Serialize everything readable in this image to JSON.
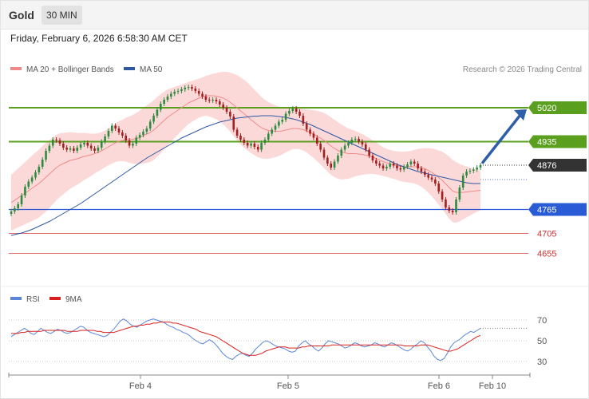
{
  "header": {
    "title": "Gold",
    "timeframe": "30 MIN"
  },
  "datetime": "Friday, February 6, 2026 6:58:30 AM CET",
  "legend": {
    "ma20": "MA 20 + Bollinger Bands",
    "ma50": "MA 50"
  },
  "copyright": "Research © 2026 Trading Central",
  "rsi_legend": {
    "rsi": "RSI",
    "ma": "9MA"
  },
  "colors": {
    "up": "#2e8b3e",
    "down": "#a31f1f",
    "ma20": "#f08a8a",
    "ma50": "#2f57a3",
    "band": "#fcd9d9",
    "resistance": "#5aa01e",
    "support": "#2a5bd7",
    "pivot": "#333333",
    "lowsupport": "#e06b6b",
    "rsi": "#5b86d8",
    "rsi_ma": "#d92020"
  },
  "chart_data": [
    {
      "type": "line",
      "name": "price",
      "ylim": [
        4600,
        5090
      ],
      "x_ticks": [
        "Feb 4",
        "Feb 5",
        "Feb 6",
        "Feb 10"
      ],
      "levels": [
        {
          "value": 5020,
          "label": "5020",
          "kind": "resistance"
        },
        {
          "value": 4935,
          "label": "4935",
          "kind": "resistance"
        },
        {
          "value": 4876,
          "label": "4876",
          "kind": "pivot"
        },
        {
          "value": 4765,
          "label": "4765",
          "kind": "support"
        },
        {
          "value": 4705,
          "label": "4705",
          "kind": "support-minor"
        },
        {
          "value": 4655,
          "label": "4655",
          "kind": "support-minor"
        }
      ],
      "close": [
        4760,
        4768,
        4778,
        4800,
        4822,
        4835,
        4845,
        4858,
        4872,
        4890,
        4912,
        4925,
        4940,
        4938,
        4930,
        4920,
        4915,
        4918,
        4912,
        4920,
        4928,
        4932,
        4925,
        4918,
        4912,
        4920,
        4935,
        4948,
        4962,
        4975,
        4968,
        4958,
        4950,
        4938,
        4925,
        4930,
        4945,
        4952,
        4960,
        4968,
        4985,
        5000,
        5015,
        5030,
        5040,
        5048,
        5055,
        5060,
        5062,
        5066,
        5070,
        5072,
        5068,
        5062,
        5055,
        5048,
        5040,
        5038,
        5040,
        5036,
        5028,
        5020,
        5010,
        4998,
        4965,
        4950,
        4940,
        4932,
        4925,
        4930,
        4922,
        4915,
        4932,
        4940,
        4955,
        4965,
        4975,
        4985,
        4990,
        5005,
        5012,
        5018,
        5010,
        5000,
        4980,
        4965,
        4955,
        4945,
        4930,
        4915,
        4895,
        4880,
        4870,
        4885,
        4900,
        4915,
        4925,
        4932,
        4940,
        4942,
        4935,
        4928,
        4915,
        4900,
        4888,
        4880,
        4875,
        4868,
        4872,
        4880,
        4875,
        4868,
        4865,
        4872,
        4878,
        4885,
        4880,
        4868,
        4860,
        4852,
        4845,
        4840,
        4830,
        4810,
        4790,
        4770,
        4762,
        4758,
        4790,
        4820,
        4850,
        4860,
        4862,
        4865,
        4870,
        4876
      ],
      "ma20": [
        4782,
        4788,
        4794,
        4800,
        4806,
        4812,
        4818,
        4824,
        4830,
        4838,
        4846,
        4854,
        4862,
        4870,
        4876,
        4880,
        4884,
        4888,
        4890,
        4892,
        4895,
        4898,
        4900,
        4902,
        4905,
        4908,
        4912,
        4917,
        4922,
        4927,
        4932,
        4936,
        4938,
        4940,
        4940,
        4941,
        4943,
        4946,
        4950,
        4954,
        4958,
        4964,
        4972,
        4980,
        4988,
        4996,
        5002,
        5008,
        5014,
        5020,
        5026,
        5032,
        5036,
        5040,
        5044,
        5047,
        5050,
        5050,
        5050,
        5049,
        5047,
        5044,
        5040,
        5034,
        5027,
        5020,
        5012,
        5005,
        4998,
        4990,
        4983,
        4976,
        4970,
        4966,
        4963,
        4962,
        4961,
        4961,
        4962,
        4964,
        4966,
        4968,
        4968,
        4967,
        4965,
        4962,
        4958,
        4954,
        4949,
        4944,
        4938,
        4931,
        4924,
        4918,
        4913,
        4909,
        4907,
        4905,
        4905,
        4905,
        4904,
        4903,
        4901,
        4899,
        4896,
        4893,
        4889,
        4885,
        4882,
        4879,
        4877,
        4875,
        4873,
        4872,
        4872,
        4872,
        4872,
        4872,
        4870,
        4867,
        4863,
        4858,
        4852,
        4845,
        4838,
        4829,
        4820,
        4811,
        4808,
        4807,
        4808,
        4809,
        4810,
        4811,
        4812,
        4813
      ],
      "ma50": [
        4700,
        4702,
        4704,
        4706,
        4709,
        4712,
        4715,
        4719,
        4723,
        4727,
        4731,
        4735,
        4740,
        4745,
        4750,
        4755,
        4760,
        4765,
        4770,
        4775,
        4780,
        4786,
        4792,
        4798,
        4804,
        4810,
        4816,
        4822,
        4828,
        4834,
        4840,
        4846,
        4852,
        4858,
        4864,
        4870,
        4876,
        4882,
        4888,
        4894,
        4899,
        4904,
        4909,
        4914,
        4919,
        4924,
        4929,
        4934,
        4939,
        4944,
        4948,
        4952,
        4956,
        4960,
        4964,
        4968,
        4972,
        4975,
        4978,
        4981,
        4984,
        4986,
        4988,
        4990,
        4992,
        4994,
        4995,
        4996,
        4997,
        4998,
        4999,
        4999,
        5000,
        5000,
        5000,
        5000,
        4999,
        4998,
        4997,
        4996,
        4994,
        4992,
        4990,
        4987,
        4984,
        4981,
        4978,
        4974,
        4970,
        4966,
        4962,
        4958,
        4954,
        4950,
        4946,
        4942,
        4938,
        4934,
        4930,
        4926,
        4922,
        4918,
        4914,
        4910,
        4906,
        4902,
        4898,
        4894,
        4890,
        4886,
        4882,
        4878,
        4875,
        4872,
        4869,
        4866,
        4863,
        4860,
        4858,
        4856,
        4854,
        4852,
        4850,
        4848,
        4846,
        4844,
        4842,
        4840,
        4838,
        4836,
        4834,
        4832,
        4831,
        4830,
        4830,
        4830
      ],
      "band_width": [
        70,
        72,
        74,
        76,
        78,
        80,
        82,
        84,
        85,
        86,
        86,
        85,
        84,
        82,
        80,
        77,
        74,
        71,
        68,
        65,
        62,
        59,
        56,
        53,
        50,
        48,
        47,
        46,
        46,
        47,
        48,
        50,
        52,
        55,
        58,
        61,
        64,
        67,
        70,
        72,
        74,
        75,
        75,
        74,
        72,
        70,
        67,
        64,
        61,
        58,
        55,
        53,
        51,
        50,
        49,
        49,
        50,
        52,
        55,
        58,
        62,
        66,
        70,
        74,
        78,
        82,
        84,
        85,
        85,
        84,
        82,
        80,
        77,
        74,
        71,
        68,
        65,
        62,
        59,
        56,
        54,
        52,
        51,
        51,
        52,
        54,
        57,
        60,
        63,
        66,
        69,
        71,
        72,
        72,
        71,
        69,
        66,
        63,
        60,
        57,
        54,
        51,
        48,
        45,
        42,
        40,
        38,
        36,
        35,
        35,
        35,
        36,
        37,
        38,
        39,
        40,
        42,
        45,
        48,
        52,
        56,
        60,
        64,
        68,
        72,
        75,
        78,
        78,
        76,
        72,
        68,
        64,
        60,
        56,
        53,
        50
      ]
    },
    {
      "type": "line",
      "name": "rsi",
      "ylim": [
        20,
        80
      ],
      "y_ticks": [
        70,
        50,
        30
      ],
      "value": [
        54,
        56,
        58,
        60,
        62,
        60,
        57,
        56,
        59,
        62,
        60,
        58,
        57,
        59,
        61,
        60,
        58,
        57,
        58,
        60,
        62,
        64,
        63,
        60,
        58,
        57,
        56,
        55,
        54,
        55,
        58,
        61,
        65,
        69,
        71,
        69,
        66,
        64,
        63,
        65,
        67,
        69,
        70,
        71,
        70,
        69,
        68,
        66,
        64,
        63,
        61,
        60,
        58,
        57,
        55,
        52,
        50,
        48,
        47,
        49,
        51,
        49,
        46,
        42,
        38,
        35,
        33,
        32,
        35,
        37,
        38,
        36,
        35,
        38,
        42,
        45,
        48,
        50,
        49,
        47,
        45,
        44,
        43,
        42,
        40,
        39,
        40,
        45,
        48,
        50,
        47,
        45,
        42,
        40,
        43,
        47,
        50,
        49,
        48,
        47,
        45,
        43,
        44,
        46,
        48,
        47,
        45,
        44,
        45,
        46,
        48,
        47,
        45,
        44,
        46,
        48,
        47,
        45,
        43,
        41,
        40,
        42,
        45,
        47,
        50,
        48,
        44,
        40,
        35,
        32,
        31,
        33,
        38,
        44,
        48,
        50,
        52,
        55,
        57,
        59,
        58,
        60,
        62
      ],
      "ma": [
        57,
        57,
        57,
        58,
        58,
        59,
        59,
        59,
        59,
        59,
        60,
        60,
        60,
        60,
        60,
        60,
        60,
        59,
        59,
        59,
        59,
        60,
        60,
        60,
        60,
        60,
        59,
        59,
        58,
        58,
        58,
        58,
        59,
        60,
        61,
        62,
        63,
        64,
        64,
        65,
        65,
        66,
        66,
        67,
        67,
        68,
        68,
        68,
        68,
        67,
        67,
        66,
        65,
        64,
        63,
        62,
        61,
        59,
        58,
        57,
        56,
        55,
        54,
        52,
        50,
        48,
        46,
        44,
        42,
        40,
        38,
        37,
        36,
        36,
        36,
        37,
        38,
        40,
        41,
        42,
        43,
        44,
        44,
        44,
        43,
        43,
        43,
        43,
        44,
        44,
        45,
        45,
        45,
        45,
        45,
        45,
        45,
        46,
        46,
        46,
        46,
        46,
        46,
        46,
        46,
        46,
        46,
        46,
        46,
        46,
        46,
        46,
        46,
        46,
        46,
        46,
        46,
        46,
        46,
        45,
        45,
        45,
        45,
        45,
        46,
        46,
        46,
        45,
        44,
        43,
        42,
        41,
        40,
        40,
        41,
        42,
        44,
        46,
        48,
        50,
        52,
        54,
        55
      ]
    }
  ]
}
